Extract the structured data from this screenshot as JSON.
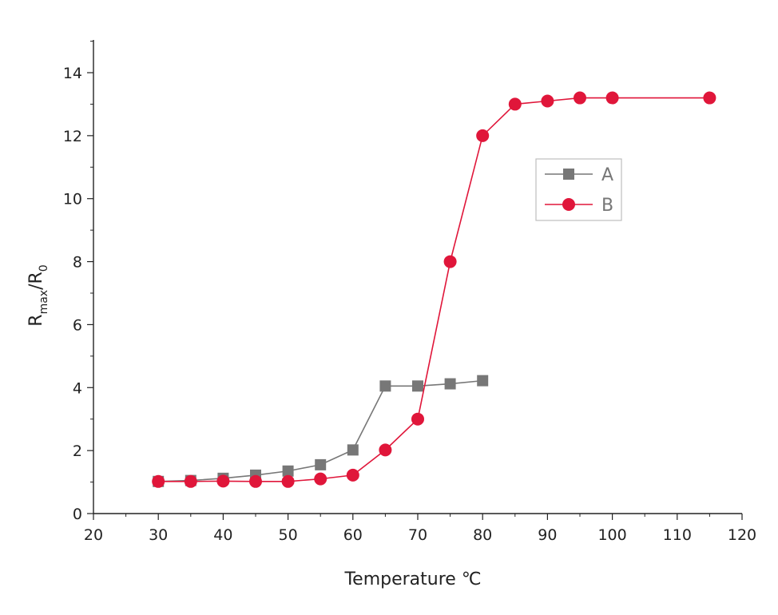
{
  "chart_data": {
    "type": "line",
    "title": "",
    "xlabel": "Temperature ℃",
    "ylabel": {
      "main": "R",
      "sub1": "max",
      "mid": "/R",
      "sub2": "0"
    },
    "xlim": [
      20,
      120
    ],
    "ylim": [
      0,
      14
    ],
    "xticks": [
      20,
      30,
      40,
      50,
      60,
      70,
      80,
      90,
      100,
      110,
      120
    ],
    "yticks": [
      0,
      2,
      4,
      6,
      8,
      10,
      12,
      14
    ],
    "grid": false,
    "legend_position": "right",
    "series": [
      {
        "name": "A",
        "color": "#777777",
        "marker": "square",
        "x": [
          30,
          35,
          40,
          45,
          50,
          55,
          60,
          65,
          70,
          75,
          80
        ],
        "y": [
          1.02,
          1.05,
          1.12,
          1.22,
          1.35,
          1.55,
          2.02,
          4.05,
          4.05,
          4.12,
          4.22
        ]
      },
      {
        "name": "B",
        "color": "#e0163a",
        "marker": "circle",
        "x": [
          30,
          35,
          40,
          45,
          50,
          55,
          60,
          65,
          70,
          75,
          80,
          85,
          90,
          95,
          100,
          115
        ],
        "y": [
          1.02,
          1.02,
          1.03,
          1.02,
          1.02,
          1.1,
          1.22,
          2.02,
          3.0,
          8.0,
          12.0,
          13.0,
          13.1,
          13.2,
          13.2,
          13.2
        ]
      }
    ]
  }
}
